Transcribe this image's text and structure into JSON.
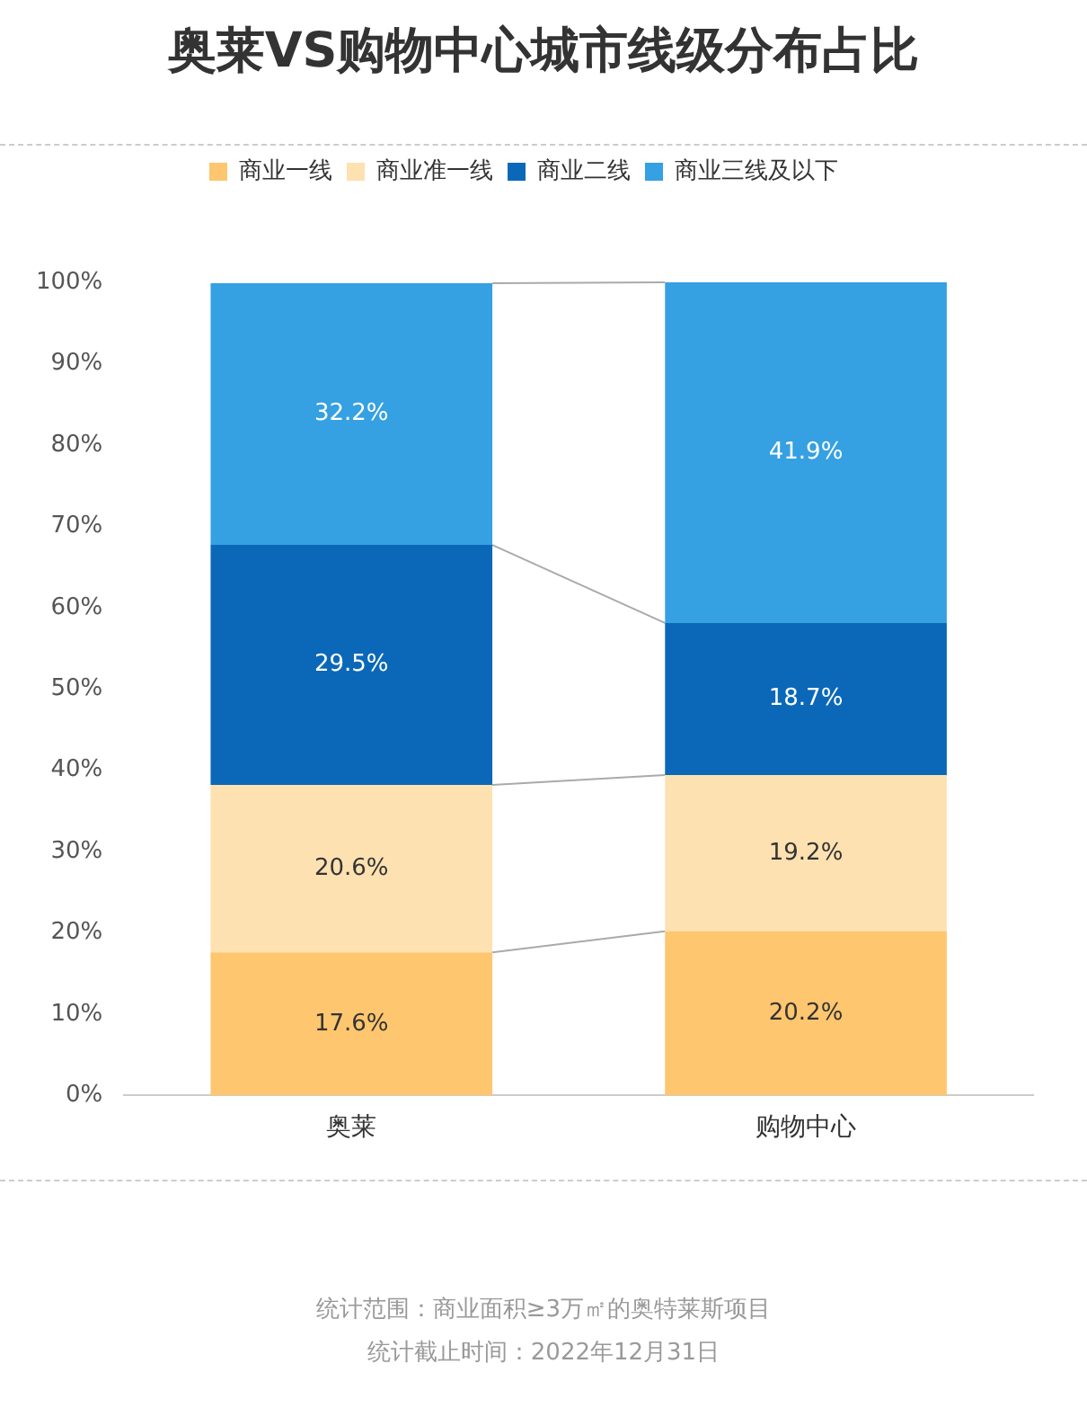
{
  "chart_data": {
    "type": "bar",
    "stacked": true,
    "title": "奥莱VS购物中心城市线级分布占比",
    "categories": [
      "奥莱",
      "购物中心"
    ],
    "series": [
      {
        "name": "商业一线",
        "color": "#fec66f",
        "values": [
          17.6,
          20.2
        ],
        "value_labels": [
          "17.6%",
          "20.2%"
        ]
      },
      {
        "name": "商业准一线",
        "color": "#fde1b1",
        "values": [
          20.6,
          19.2
        ],
        "value_labels": [
          "20.6%",
          "19.2%"
        ]
      },
      {
        "name": "商业二线",
        "color": "#0b68b8",
        "values": [
          29.5,
          18.7
        ],
        "value_labels": [
          "29.5%",
          "18.7%"
        ]
      },
      {
        "name": "商业三线及以下",
        "color": "#35a0e2",
        "values": [
          32.2,
          41.9
        ],
        "value_labels": [
          "32.2%",
          "41.9%"
        ]
      }
    ],
    "ylim": [
      0,
      100
    ],
    "yticks": [
      {
        "value": 0,
        "label": "0%"
      },
      {
        "value": 10,
        "label": "10%"
      },
      {
        "value": 20,
        "label": "20%"
      },
      {
        "value": 30,
        "label": "30%"
      },
      {
        "value": 40,
        "label": "40%"
      },
      {
        "value": 50,
        "label": "50%"
      },
      {
        "value": 60,
        "label": "60%"
      },
      {
        "value": 70,
        "label": "70%"
      },
      {
        "value": 80,
        "label": "80%"
      },
      {
        "value": 90,
        "label": "90%"
      },
      {
        "value": 100,
        "label": "100%"
      }
    ],
    "legend": "top",
    "annotations": [
      "统计范围：商业面积≥3万㎡的奥特莱斯项目",
      "统计截止时间：2022年12月31日"
    ]
  }
}
